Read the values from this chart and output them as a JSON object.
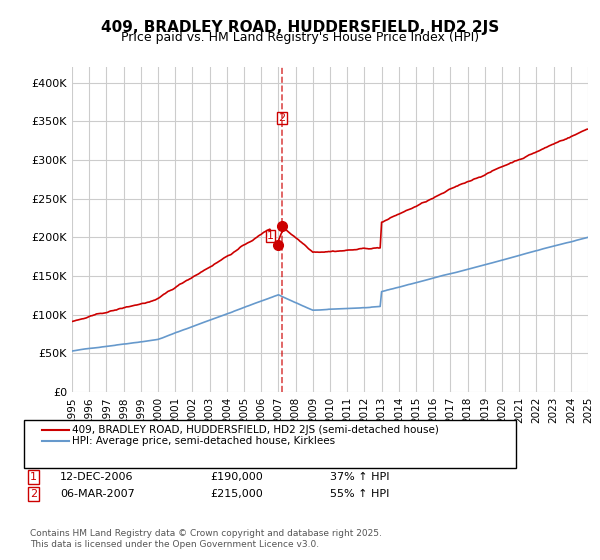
{
  "title": "409, BRADLEY ROAD, HUDDERSFIELD, HD2 2JS",
  "subtitle": "Price paid vs. HM Land Registry's House Price Index (HPI)",
  "legend_line1": "409, BRADLEY ROAD, HUDDERSFIELD, HD2 2JS (semi-detached house)",
  "legend_line2": "HPI: Average price, semi-detached house, Kirklees",
  "transaction1_label": "1",
  "transaction1_date": "12-DEC-2006",
  "transaction1_price": "£190,000",
  "transaction1_hpi": "37% ↑ HPI",
  "transaction2_label": "2",
  "transaction2_date": "06-MAR-2007",
  "transaction2_price": "£215,000",
  "transaction2_hpi": "55% ↑ HPI",
  "copyright": "Contains HM Land Registry data © Crown copyright and database right 2025.\nThis data is licensed under the Open Government Licence v3.0.",
  "red_color": "#cc0000",
  "blue_color": "#6699cc",
  "grid_color": "#cccccc",
  "background": "#ffffff",
  "ylim": [
    0,
    420000
  ],
  "yticks": [
    0,
    50000,
    100000,
    150000,
    200000,
    250000,
    300000,
    350000,
    400000
  ],
  "ylabel_format": "£{0}K"
}
